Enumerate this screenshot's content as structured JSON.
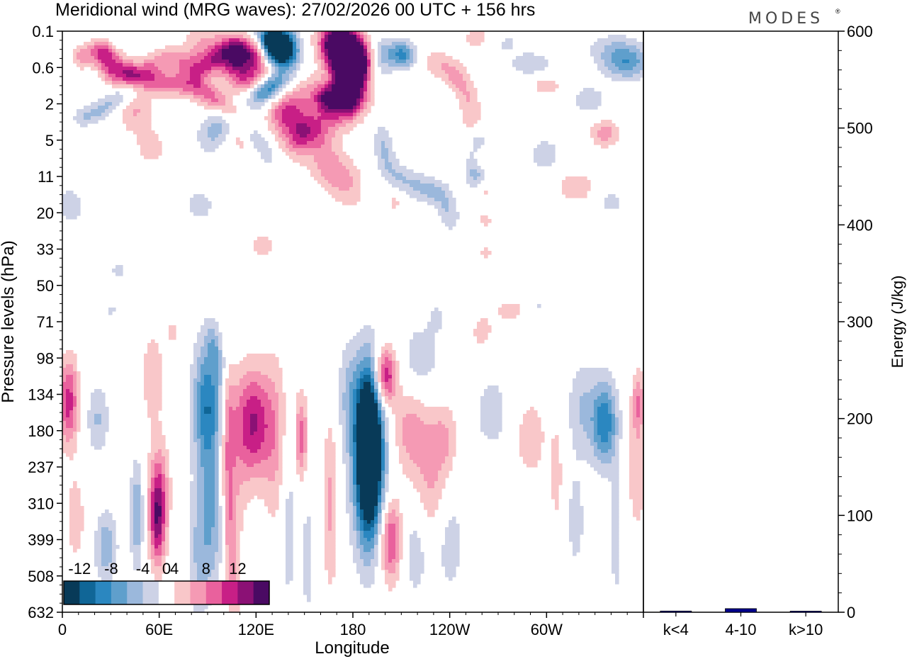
{
  "chart_data": [
    {
      "type": "heatmap",
      "title": "Meridional wind (MRG waves):  27/02/2026  00 UTC  + 156 hrs",
      "xlabel": "Longitude",
      "ylabel": "Pressure levels (hPa)",
      "x_ticks": [
        "0",
        "60E",
        "120E",
        "180",
        "120W",
        "60W"
      ],
      "x_tick_values": [
        0,
        60,
        120,
        180,
        240,
        300
      ],
      "xlim": [
        0,
        360
      ],
      "y_ticks": [
        "0.1",
        "0.6",
        "2",
        "5",
        "11",
        "20",
        "33",
        "50",
        "71",
        "98",
        "134",
        "180",
        "237",
        "310",
        "399",
        "508",
        "632"
      ],
      "colorbar": {
        "labels": [
          "-12",
          "-8",
          "-4",
          "0",
          "4",
          "8",
          "12"
        ],
        "label_values": [
          -12,
          -8,
          -4,
          0,
          4,
          8,
          12
        ],
        "bins": [
          -14,
          -12,
          -10,
          -8,
          -6,
          -4,
          -2,
          2,
          4,
          6,
          8,
          10,
          12,
          14
        ],
        "colors": [
          "#083a58",
          "#106697",
          "#2b87c0",
          "#5f9fcc",
          "#9bb8dc",
          "#cdd2e6",
          "#ffffff",
          "#f9c7c9",
          "#f59ab4",
          "#e9619d",
          "#c81f86",
          "#8b1175",
          "#4a0a63"
        ]
      },
      "blobs": [
        {
          "lon": 260,
          "lev": 0.2,
          "wl": 14,
          "wv": 0.35,
          "v": 3.5
        },
        {
          "lon": 272,
          "lev": 0.3,
          "wl": 12,
          "wv": 0.3,
          "v": -3.5
        },
        {
          "lon": 290,
          "lev": 0.9,
          "wl": 14,
          "wv": 0.35,
          "v": -3.5
        },
        {
          "lon": 342,
          "lev": 0.5,
          "wl": 18,
          "wv": 0.45,
          "v": -3.5
        },
        {
          "lon": 350,
          "lev": 0.9,
          "wl": 14,
          "wv": 0.45,
          "v": -6.5
        },
        {
          "lon": 326,
          "lev": 1.9,
          "wl": 12,
          "wv": 0.45,
          "v": -3.2
        },
        {
          "lon": 300,
          "lev": 1.5,
          "wl": 10,
          "wv": 0.3,
          "v": 3.2
        },
        {
          "lon": 299,
          "lev": 3.4,
          "wl": 10,
          "wv": 0.5,
          "v": -3.3
        },
        {
          "lon": 336,
          "lev": 2.8,
          "wl": 9,
          "wv": 0.4,
          "v": 5
        },
        {
          "lon": 318,
          "lev": 4.3,
          "wl": 11,
          "wv": 0.4,
          "v": 4
        },
        {
          "lon": 340,
          "lev": 4.7,
          "wl": 9,
          "wv": 0.3,
          "v": -3
        },
        {
          "lon": 45,
          "lev": 2.2,
          "wl": 11,
          "wv": 0.6,
          "v": 4.2
        },
        {
          "lon": 55,
          "lev": 3.2,
          "wl": 10,
          "wv": 0.5,
          "v": 3
        },
        {
          "lon": 5,
          "lev": 4.8,
          "wl": 10,
          "wv": 0.6,
          "v": -3
        },
        {
          "lon": 85,
          "lev": 4.8,
          "wl": 10,
          "wv": 0.5,
          "v": -3
        },
        {
          "lon": 124,
          "lev": 5.9,
          "wl": 8,
          "wv": 0.35,
          "v": 3.6
        },
        {
          "lon": 206,
          "lev": 4.7,
          "wl": 6,
          "wv": 0.35,
          "v": 2.5
        },
        {
          "lon": 254,
          "lev": 3.8,
          "wl": 6,
          "wv": 0.6,
          "v": -3
        },
        {
          "lon": 262,
          "lev": 3.6,
          "wl": 5,
          "wv": 0.25,
          "v": 2.6
        },
        {
          "lon": 262,
          "lev": 4.4,
          "wl": 5,
          "wv": 0.25,
          "v": 2.6
        },
        {
          "lon": 262,
          "lev": 5.2,
          "wl": 5,
          "wv": 0.25,
          "v": 2.6
        },
        {
          "lon": 262,
          "lev": 6.1,
          "wl": 5,
          "wv": 0.25,
          "v": 2.6
        },
        {
          "lon": 258,
          "lev": 3.0,
          "wl": 6,
          "wv": 0.3,
          "v": -2.6
        },
        {
          "lon": 258,
          "lev": 4.0,
          "wl": 6,
          "wv": 0.3,
          "v": -2.6
        },
        {
          "lon": 154,
          "lev": 3.3,
          "wl": 6,
          "wv": 0.4,
          "v": -2.5
        },
        {
          "lon": 277,
          "lev": 7.7,
          "wl": 12,
          "wv": 0.4,
          "v": 2.8
        },
        {
          "lon": 294,
          "lev": 7.6,
          "wl": 6,
          "wv": 0.25,
          "v": -2.5
        },
        {
          "lon": 35,
          "lev": 6.6,
          "wl": 8,
          "wv": 0.4,
          "v": -2.4
        },
        {
          "lon": 30,
          "lev": 7.7,
          "wl": 6,
          "wv": 0.25,
          "v": -2.3
        },
        {
          "lon": 4,
          "lev": 10.2,
          "wl": 6,
          "wv": 1.2,
          "v": 9
        },
        {
          "lon": 8,
          "lev": 13.4,
          "wl": 6,
          "wv": 1.2,
          "v": 3.5
        },
        {
          "lon": 22,
          "lev": 10.7,
          "wl": 7,
          "wv": 1.0,
          "v": -4.2
        },
        {
          "lon": 27,
          "lev": 14.2,
          "wl": 7,
          "wv": 1.0,
          "v": -5.5
        },
        {
          "lon": 56,
          "lev": 9.5,
          "wl": 8,
          "wv": 1.5,
          "v": 3.2
        },
        {
          "lon": 60,
          "lev": 12.5,
          "wl": 7,
          "wv": 1.3,
          "v": 4.5
        },
        {
          "lon": 59,
          "lev": 13.5,
          "wl": 5,
          "wv": 1.3,
          "v": 10
        },
        {
          "lon": 46,
          "lev": 13.3,
          "wl": 4,
          "wv": 1.5,
          "v": -6
        },
        {
          "lon": 90,
          "lev": 10.3,
          "wl": 9,
          "wv": 1.8,
          "v": -9.8
        },
        {
          "lon": 92,
          "lev": 13.6,
          "wl": 8,
          "wv": 2.0,
          "v": -6
        },
        {
          "lon": 83,
          "lev": 14.5,
          "wl": 6,
          "wv": 2.0,
          "v": -3
        },
        {
          "lon": 106,
          "lev": 12.5,
          "wl": 8,
          "wv": 2.5,
          "v": 3
        },
        {
          "lon": 118,
          "lev": 10.8,
          "wl": 11,
          "wv": 1.5,
          "v": 10
        },
        {
          "lon": 132,
          "lev": 11.3,
          "wl": 8,
          "wv": 2.5,
          "v": 4
        },
        {
          "lon": 148,
          "lev": 11.2,
          "wl": 4,
          "wv": 1.2,
          "v": 7
        },
        {
          "lon": 140,
          "lev": 13.5,
          "wl": 5,
          "wv": 2.5,
          "v": -3.5
        },
        {
          "lon": 152,
          "lev": 14.5,
          "wl": 4,
          "wv": 2.0,
          "v": -3
        },
        {
          "lon": 166,
          "lev": 13.0,
          "wl": 5,
          "wv": 2.5,
          "v": 4.5
        },
        {
          "lon": 178,
          "lev": 10.0,
          "wl": 8,
          "wv": 1.5,
          "v": -4
        },
        {
          "lon": 190,
          "lev": 12.0,
          "wl": 11,
          "wv": 2.5,
          "v": -10
        },
        {
          "lon": 190,
          "lev": 11.4,
          "wl": 7,
          "wv": 2.0,
          "v": -18
        },
        {
          "lon": 200,
          "lev": 9.5,
          "wl": 7,
          "wv": 0.8,
          "v": 11
        },
        {
          "lon": 216,
          "lev": 11.0,
          "wl": 12,
          "wv": 1.2,
          "v": 5
        },
        {
          "lon": 236,
          "lev": 11.2,
          "wl": 9,
          "wv": 1.0,
          "v": 4
        },
        {
          "lon": 222,
          "lev": 9.0,
          "wl": 12,
          "wv": 1.0,
          "v": -3.5
        },
        {
          "lon": 228,
          "lev": 12.7,
          "wl": 12,
          "wv": 1.4,
          "v": 4
        },
        {
          "lon": 203,
          "lev": 14.0,
          "wl": 7,
          "wv": 1.2,
          "v": 9
        },
        {
          "lon": 219,
          "lev": 14.2,
          "wl": 8,
          "wv": 1.5,
          "v": -3.5
        },
        {
          "lon": 240,
          "lev": 14.0,
          "wl": 9,
          "wv": 1.5,
          "v": -3.5
        },
        {
          "lon": 266,
          "lev": 10.5,
          "wl": 12,
          "wv": 1.2,
          "v": -3
        },
        {
          "lon": 290,
          "lev": 11.2,
          "wl": 9,
          "wv": 1.0,
          "v": 4
        },
        {
          "lon": 306,
          "lev": 12.2,
          "wl": 4,
          "wv": 1.5,
          "v": 3.2
        },
        {
          "lon": 322,
          "lev": 10.4,
          "wl": 9,
          "wv": 1.3,
          "v": -4
        },
        {
          "lon": 336,
          "lev": 10.8,
          "wl": 8,
          "wv": 1.2,
          "v": -9.5
        },
        {
          "lon": 343,
          "lev": 14.0,
          "wl": 4,
          "wv": 2.0,
          "v": -3
        },
        {
          "lon": 356,
          "lev": 12.0,
          "wl": 6,
          "wv": 2.0,
          "v": 3.5
        },
        {
          "lon": 357,
          "lev": 10.2,
          "wl": 4,
          "wv": 0.8,
          "v": 5
        },
        {
          "lon": 318,
          "lev": 13.5,
          "wl": 6,
          "wv": 1.5,
          "v": -3
        },
        {
          "lon": 260,
          "lev": 8.3,
          "wl": 7,
          "wv": 0.5,
          "v": 3
        },
        {
          "lon": 232,
          "lev": 7.9,
          "wl": 5,
          "wv": 0.4,
          "v": -2.5
        },
        {
          "lon": 68,
          "lev": 8.3,
          "wl": 4,
          "wv": 0.4,
          "v": 2.5
        }
      ],
      "ridges": [
        {
          "pts": [
            [
              6,
              0.8
            ],
            [
              24,
              0.5
            ],
            [
              44,
              1.2
            ],
            [
              66,
              0.7
            ],
            [
              84,
              1.1
            ],
            [
              100,
              0.6
            ],
            [
              128,
              0.8
            ]
          ],
          "w": 5,
          "wv": 0.35,
          "v": 3.2
        },
        {
          "pts": [
            [
              24,
              0.6
            ],
            [
              30,
              1.2
            ],
            [
              60,
              1.4
            ],
            [
              82,
              1.5
            ],
            [
              98,
              2.0
            ],
            [
              118,
              2.6
            ]
          ],
          "w": 6,
          "wv": 0.35,
          "v": 4.2
        },
        {
          "pts": [
            [
              80,
              0.5
            ],
            [
              100,
              0.6
            ],
            [
              122,
              1.2
            ],
            [
              140,
              2.4
            ],
            [
              152,
              3.0
            ],
            [
              160,
              3.5
            ],
            [
              172,
              4.0
            ],
            [
              186,
              4.5
            ]
          ],
          "w": 8,
          "wv": 0.7,
          "v": 3.2
        },
        {
          "pts": [
            [
              104,
              0.8
            ],
            [
              110,
              1.1
            ],
            [
              116,
              1.6
            ],
            [
              124,
              2.2
            ],
            [
              136,
              2.2
            ],
            [
              152,
              1.6
            ],
            [
              168,
              1.8
            ]
          ],
          "w": 8,
          "wv": 0.5,
          "v": 2.6
        },
        {
          "pts": [
            [
              110,
              2.8
            ],
            [
              122,
              3.0
            ],
            [
              128,
              3.4
            ],
            [
              132,
              3.6
            ]
          ],
          "w": 4,
          "wv": 0.4,
          "v": -2.2
        },
        {
          "pts": [
            [
              105,
              0.4
            ],
            [
              118,
              0.4
            ],
            [
              128,
              0.5
            ]
          ],
          "w": 6,
          "wv": 0.3,
          "v": 4
        },
        {
          "pts": [
            [
              128,
              0.2
            ],
            [
              136,
              0.4
            ],
            [
              140,
              0.9
            ],
            [
              136,
              1.5
            ],
            [
              126,
              2.0
            ],
            [
              112,
              2.2
            ],
            [
              100,
              2.4
            ],
            [
              92,
              2.8
            ],
            [
              88,
              3.3
            ]
          ],
          "w": 9,
          "wv": 0.45,
          "v": -3.2
        },
        {
          "pts": [
            [
              126,
              0.3
            ],
            [
              136,
              0.4
            ],
            [
              138,
              0.6
            ]
          ],
          "w": 9,
          "wv": 0.45,
          "v": -11
        },
        {
          "pts": [
            [
              132,
              1.4
            ],
            [
              124,
              1.7
            ],
            [
              116,
              1.8
            ]
          ],
          "w": 7,
          "wv": 0.3,
          "v": -8
        },
        {
          "pts": [
            [
              166,
              0.2
            ],
            [
              178,
              0.4
            ],
            [
              186,
              0.8
            ],
            [
              178,
              1.6
            ],
            [
              170,
              2.0
            ],
            [
              162,
              2.5
            ],
            [
              150,
              2.8
            ],
            [
              140,
              3.2
            ]
          ],
          "w": 12,
          "wv": 0.55,
          "v": 3.6
        },
        {
          "pts": [
            [
              168,
              0.3
            ],
            [
              176,
              0.6
            ],
            [
              180,
              1.0
            ],
            [
              180,
              1.6
            ],
            [
              172,
              2.2
            ]
          ],
          "w": 10,
          "wv": 0.6,
          "v": 10
        },
        {
          "pts": [
            [
              162,
              1.8
            ],
            [
              168,
              2.0
            ]
          ],
          "w": 6,
          "wv": 0.3,
          "v": 6
        },
        {
          "pts": [
            [
              196,
              0.4
            ],
            [
              200,
              0.7
            ],
            [
              194,
              1.2
            ],
            [
              184,
              1.5
            ],
            [
              176,
              1.7
            ]
          ],
          "w": 8,
          "wv": 0.4,
          "v": -3.2
        },
        {
          "pts": [
            [
              210,
              0.6
            ],
            [
              214,
              0.8
            ]
          ],
          "w": 8,
          "wv": 0.35,
          "v": -8
        },
        {
          "pts": [
            [
              228,
              0.8
            ],
            [
              238,
              1.0
            ],
            [
              248,
              1.4
            ],
            [
              254,
              2.2
            ],
            [
              252,
              2.8
            ]
          ],
          "w": 7,
          "wv": 0.4,
          "v": 3
        },
        {
          "pts": [
            [
              198,
              2.8
            ],
            [
              200,
              3.6
            ],
            [
              206,
              4.0
            ],
            [
              222,
              4.3
            ],
            [
              236,
              4.5
            ],
            [
              240,
              5.0
            ],
            [
              242,
              5.5
            ]
          ],
          "w": 6,
          "wv": 0.4,
          "v": -3
        },
        {
          "pts": [
            [
              108,
              2.8
            ],
            [
              116,
              3.4
            ]
          ],
          "w": 5,
          "wv": 0.3,
          "v": 3
        },
        {
          "pts": [
            [
              4,
              0.9
            ],
            [
              8,
              0.9
            ]
          ],
          "w": 4,
          "wv": 0.3,
          "v": -2.5
        },
        {
          "pts": [
            [
              10,
              2.4
            ],
            [
              24,
              2.2
            ],
            [
              38,
              1.7
            ],
            [
              50,
              1.5
            ]
          ],
          "w": 6,
          "wv": 0.3,
          "v": -2.8
        },
        {
          "pts": [
            [
              92,
              8.4
            ],
            [
              96,
              9.0
            ],
            [
              100,
              9.5
            ]
          ],
          "w": 4,
          "wv": 0.5,
          "v": -2.5
        },
        {
          "pts": [
            [
              103,
              9.8
            ],
            [
              102,
              12.0
            ],
            [
              104,
              14.5
            ],
            [
              108,
              16.0
            ]
          ],
          "w": 4,
          "wv": 1.2,
          "v": 3
        }
      ]
    },
    {
      "type": "bar",
      "categories": [
        "k<4",
        "4-10",
        "k>10"
      ],
      "values": [
        0.5,
        3,
        0.4
      ],
      "colors": [
        "#00008b",
        "#00008b",
        "#00008b"
      ],
      "ylabel": "Energy (J/kg)",
      "ylim": [
        0,
        600
      ],
      "y_ticks": [
        "0",
        "100",
        "200",
        "300",
        "400",
        "500",
        "600"
      ],
      "y_tick_values": [
        0,
        100,
        200,
        300,
        400,
        500,
        600
      ]
    }
  ],
  "branding": {
    "logo_text": "MODES"
  }
}
